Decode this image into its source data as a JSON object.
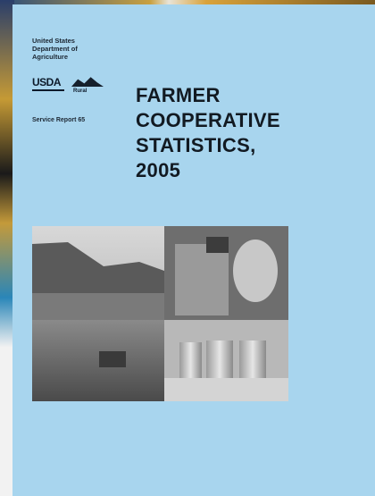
{
  "header": {
    "agency_lines": [
      "United States",
      "Department of",
      "Agriculture"
    ],
    "logo": "USDA",
    "logo_sub": "Rural",
    "report": "Service Report 65"
  },
  "title_lines": [
    "FARMER",
    "COOPERATIVE",
    "STATISTICS,",
    "2005"
  ]
}
